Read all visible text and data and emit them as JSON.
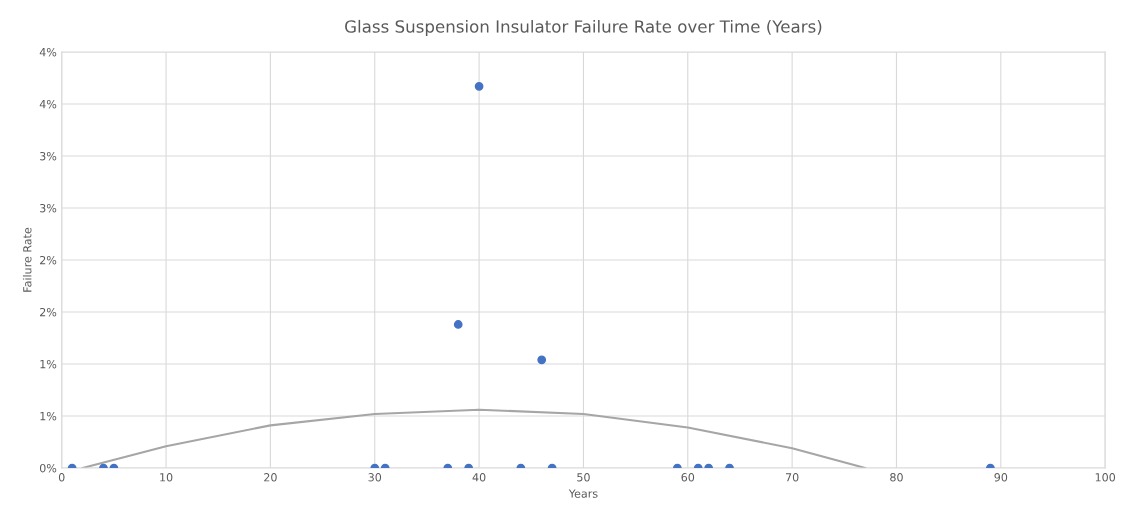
{
  "chart_data": {
    "type": "scatter",
    "title": "Glass Suspension Insulator Failure Rate over Time (Years)",
    "xlabel": "Years",
    "ylabel": "Failure Rate",
    "series": [
      {
        "color": "#4472c4",
        "x": [
          1,
          4,
          5,
          30,
          31,
          37,
          38,
          39,
          40,
          44,
          46,
          47,
          59,
          61,
          62,
          64,
          89
        ],
        "values": [
          0,
          0,
          0,
          0,
          0,
          0,
          1.38,
          0,
          3.67,
          0,
          1.04,
          0,
          0,
          0,
          0,
          0,
          0
        ]
      },
      {
        "type": "line",
        "color": "#a6a6a6",
        "marker": "none",
        "x": [
          2,
          10,
          20,
          30,
          40,
          50,
          60,
          70,
          77
        ],
        "values": [
          0,
          0.21,
          0.41,
          0.52,
          0.56,
          0.52,
          0.39,
          0.19,
          0
        ]
      }
    ],
    "xlim": [
      0,
      100
    ],
    "xticks": [
      0,
      10,
      20,
      30,
      40,
      50,
      60,
      70,
      80,
      90,
      100
    ],
    "ylim": [
      0,
      4
    ],
    "yticks": [
      {
        "value": 0,
        "label": "0%"
      },
      {
        "value": 0.5,
        "label": "1%"
      },
      {
        "value": 1,
        "label": "1%"
      },
      {
        "value": 1.5,
        "label": "2%"
      },
      {
        "value": 2,
        "label": "2%"
      },
      {
        "value": 2.5,
        "label": "3%"
      },
      {
        "value": 3,
        "label": "3%"
      },
      {
        "value": 3.5,
        "label": "4%"
      },
      {
        "value": 4,
        "label": "4%"
      }
    ],
    "grid": true,
    "marker": "circle"
  }
}
